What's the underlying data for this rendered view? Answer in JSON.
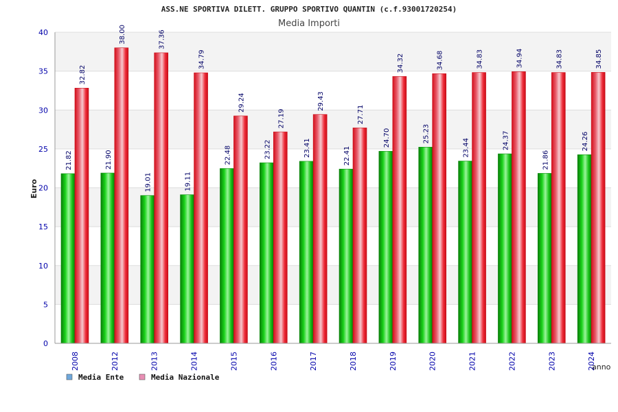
{
  "chart_data": {
    "type": "bar",
    "title": "ASS.NE SPORTIVA DILETT. GRUPPO SPORTIVO QUANTIN (c.f.93001720254)",
    "subtitle": "Media Importi",
    "xlabel": "anno",
    "ylabel": "Euro",
    "ylim": [
      0,
      40
    ],
    "yticks": [
      0,
      5,
      10,
      15,
      20,
      25,
      30,
      35,
      40
    ],
    "grid": true,
    "legend_position": "bottom-left",
    "categories": [
      "2008",
      "2012",
      "2013",
      "2014",
      "2015",
      "2016",
      "2017",
      "2018",
      "2019",
      "2020",
      "2021",
      "2022",
      "2023",
      "2024"
    ],
    "series": [
      {
        "name": "Media Ente",
        "legend_color": "#6fa8dc",
        "bar_color": "#11c611",
        "values": [
          21.82,
          21.9,
          19.01,
          19.11,
          22.48,
          23.22,
          23.41,
          22.41,
          24.7,
          25.23,
          23.44,
          24.37,
          21.86,
          24.26
        ],
        "labels": [
          "21.82",
          "21.90",
          "19.01",
          "19.11",
          "22.48",
          "23.22",
          "23.41",
          "22.41",
          "24.70",
          "25.23",
          "23.44",
          "24.37",
          "21.86",
          "24.26"
        ]
      },
      {
        "name": "Media Nazionale",
        "legend_color": "#e88fb4",
        "bar_color": "#ee1c2a",
        "values": [
          32.82,
          38.0,
          37.36,
          34.79,
          29.24,
          27.19,
          29.43,
          27.71,
          34.32,
          34.68,
          34.83,
          34.94,
          34.83,
          34.85
        ],
        "labels": [
          "32.82",
          "38.00",
          "37.36",
          "34.79",
          "29.24",
          "27.19",
          "29.43",
          "27.71",
          "34.32",
          "34.68",
          "34.83",
          "34.94",
          "34.83",
          "34.85"
        ]
      }
    ]
  }
}
